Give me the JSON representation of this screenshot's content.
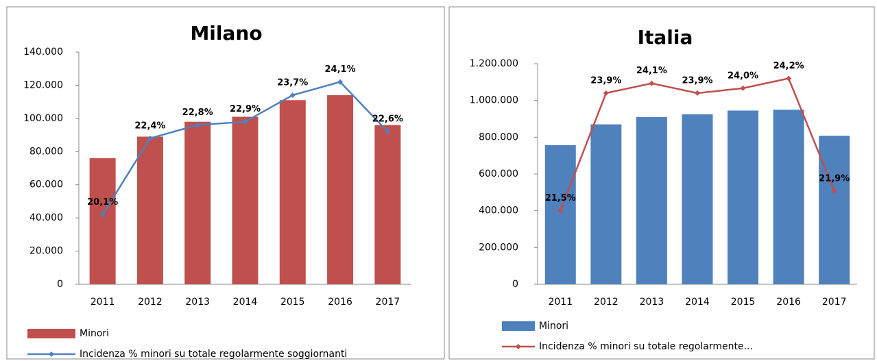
{
  "chart_data": [
    {
      "type": "bar_line",
      "title": "Milano",
      "categories": [
        "2011",
        "2012",
        "2013",
        "2014",
        "2015",
        "2016",
        "2017"
      ],
      "series": [
        {
          "name": "Minori",
          "color": "#c0504d",
          "type": "bar",
          "values": [
            76000,
            89000,
            98000,
            101000,
            111000,
            114000,
            96000
          ]
        },
        {
          "name": "Incidenza % minori su totale regolarmente soggiornanti",
          "color": "#4f81bd",
          "type": "line",
          "axis": "y2",
          "values": [
            20.1,
            22.4,
            22.8,
            22.9,
            23.7,
            24.1,
            22.6
          ],
          "value_labels": [
            "20,1%",
            "22,4%",
            "22,8%",
            "22,9%",
            "23,7%",
            "24,1%",
            "22,6%"
          ]
        }
      ],
      "ylim": [
        0,
        140000
      ],
      "yticks": [
        0,
        {
          "value": 20000,
          "label": "20.000"
        },
        {
          "value": 40000,
          "label": "40.000"
        },
        {
          "value": 60000,
          "label": "60.000"
        },
        {
          "value": 80000,
          "label": "80.000"
        },
        {
          "value": 100000,
          "label": "100.000"
        },
        {
          "value": 120000,
          "label": "120.000"
        },
        {
          "value": 140000,
          "label": "140.000"
        }
      ],
      "y2lim": [
        18,
        25
      ]
    },
    {
      "type": "bar_line",
      "title": "Italia",
      "categories": [
        "2011",
        "2012",
        "2013",
        "2014",
        "2015",
        "2016",
        "2017"
      ],
      "series": [
        {
          "name": "Minori",
          "color": "#4f81bd",
          "type": "bar",
          "values": [
            757000,
            870000,
            910000,
            925000,
            945000,
            950000,
            808000
          ]
        },
        {
          "name": "Incidenza % minori su totale regolarmente...",
          "color": "#c0504d",
          "type": "line",
          "axis": "y2",
          "values": [
            21.5,
            23.9,
            24.1,
            23.9,
            24.0,
            24.2,
            21.9
          ],
          "value_labels": [
            "21,5%",
            "23,9%",
            "24,1%",
            "23,9%",
            "24,0%",
            "24,2%",
            "21,9%"
          ]
        }
      ],
      "ylim": [
        0,
        1200000
      ],
      "yticks": [
        0,
        {
          "value": 200000,
          "label": "200.000"
        },
        {
          "value": 400000,
          "label": "400.000"
        },
        {
          "value": 600000,
          "label": "600.000"
        },
        {
          "value": 800000,
          "label": "800.000"
        },
        {
          "value": 1000000,
          "label": "1.000.000"
        },
        {
          "value": 1200000,
          "label": "1.200.000"
        }
      ],
      "y2lim": [
        20,
        24.5
      ]
    }
  ]
}
